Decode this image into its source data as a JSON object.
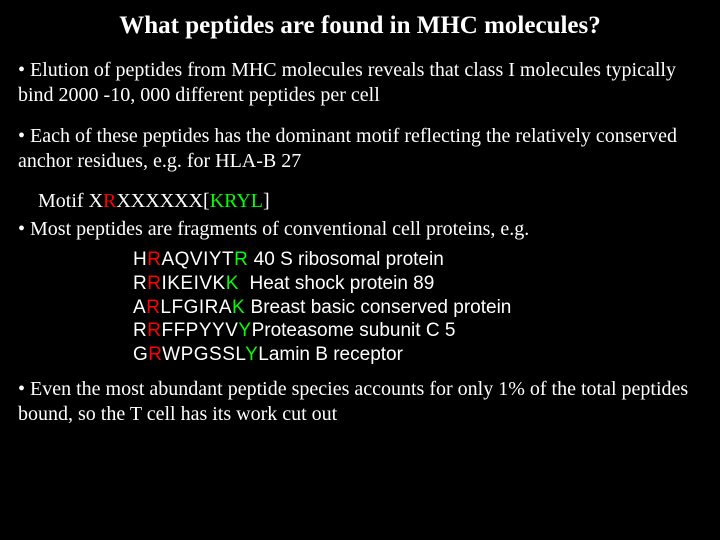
{
  "title": "What peptides are found in MHC molecules?",
  "bullets": {
    "b1": "• Elution of peptides from MHC molecules reveals that class I molecules typically bind 2000 -10, 000 different peptides per cell",
    "b2": "• Each of these peptides has the dominant motif reflecting the relatively conserved anchor residues, e.g. for HLA-B 27",
    "b3": "• Most peptides are fragments of conventional cell proteins, e.g.",
    "b4": "• Even the most abundant peptide species accounts for only 1% of the total peptides bound, so the T cell has its work cut out"
  },
  "motif": {
    "label": "Motif  ",
    "p1": "X",
    "p2": "R",
    "p3": "XXXXXX[",
    "p4": "KRYL",
    "p5": "]"
  },
  "peptides": [
    {
      "s": [
        [
          "w",
          "H"
        ],
        [
          "r",
          "R"
        ],
        [
          "w",
          "AQVIYT"
        ],
        [
          "g",
          "R"
        ]
      ],
      "sp": " ",
      "name": "40 S ribosomal protein"
    },
    {
      "s": [
        [
          "w",
          "R"
        ],
        [
          "r",
          "R"
        ],
        [
          "w",
          "IKEIVK"
        ],
        [
          "g",
          "K"
        ]
      ],
      "sp": "  ",
      "name": "Heat shock protein 89"
    },
    {
      "s": [
        [
          "w",
          "A"
        ],
        [
          "r",
          "R"
        ],
        [
          "w",
          "LFGIRA"
        ],
        [
          "g",
          "K"
        ]
      ],
      "sp": " ",
      "name": "Breast basic conserved protein"
    },
    {
      "s": [
        [
          "w",
          "R"
        ],
        [
          "r",
          "R"
        ],
        [
          "w",
          "FFPYYV"
        ],
        [
          "g",
          "Y"
        ]
      ],
      "sp": "",
      "name": "Proteasome subunit C 5"
    },
    {
      "s": [
        [
          "w",
          "G"
        ],
        [
          "r",
          "R"
        ],
        [
          "w",
          "WPGSSL"
        ],
        [
          "g",
          "Y"
        ]
      ],
      "sp": "",
      "name": "Lamin B receptor"
    }
  ],
  "colors": {
    "background": "#000000",
    "text": "#ffffff",
    "anchor_p2": "#ff0000",
    "anchor_pC": "#00ff00"
  }
}
